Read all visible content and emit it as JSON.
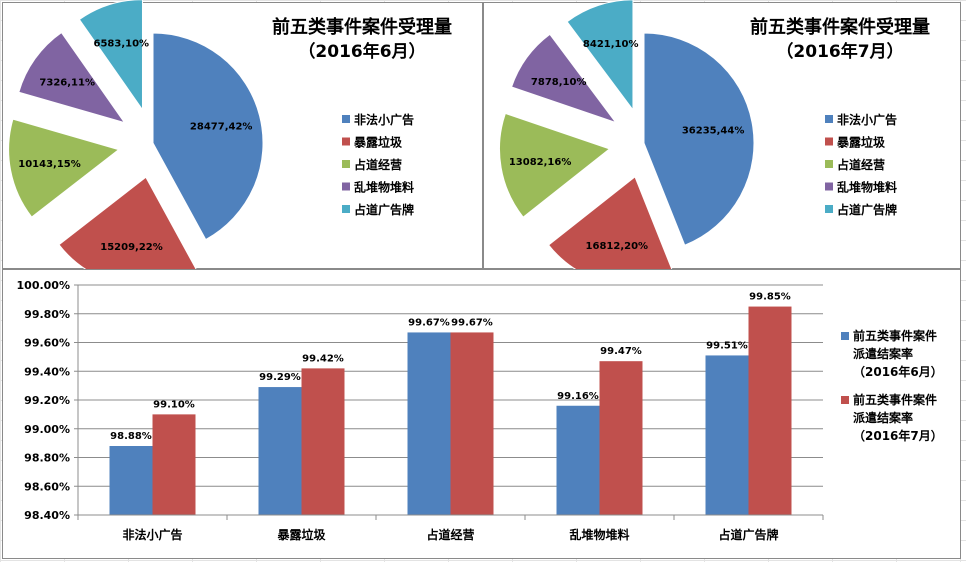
{
  "chart_data": [
    {
      "type": "pie",
      "title_line1": "前五类事件案件受理量",
      "title_line2": "（2016年6月）",
      "categories": [
        "非法小广告",
        "暴露垃圾",
        "占道经营",
        "乱堆物堆料",
        "占道广告牌"
      ],
      "values": [
        28477,
        15209,
        10143,
        7326,
        6583
      ],
      "labels": [
        "28477,42%",
        "15209,22%",
        "10143,15%",
        "7326,11%",
        "6583,10%"
      ],
      "colors": [
        "#4f81bd",
        "#c0504d",
        "#9bbb59",
        "#8064a2",
        "#4bacc6"
      ],
      "legend_position": "right"
    },
    {
      "type": "pie",
      "title_line1": "前五类事件案件受理量",
      "title_line2": "（2016年7月）",
      "categories": [
        "非法小广告",
        "暴露垃圾",
        "占道经营",
        "乱堆物堆料",
        "占道广告牌"
      ],
      "values": [
        36235,
        16812,
        13082,
        7878,
        8421
      ],
      "labels": [
        "36235,44%",
        "16812,20%",
        "13082,16%",
        "7878,10%",
        "8421,10%"
      ],
      "colors": [
        "#4f81bd",
        "#c0504d",
        "#9bbb59",
        "#8064a2",
        "#4bacc6"
      ],
      "legend_position": "right"
    },
    {
      "type": "bar",
      "categories": [
        "非法小广告",
        "暴露垃圾",
        "占道经营",
        "乱堆物堆料",
        "占道广告牌"
      ],
      "series": [
        {
          "name_lines": [
            "前五类事件案件",
            "派遣结案率",
            "（2016年6月）"
          ],
          "values": [
            98.88,
            99.29,
            99.67,
            99.16,
            99.51
          ],
          "labels": [
            "98.88%",
            "99.29%",
            "99.67%",
            "99.16%",
            "99.51%"
          ],
          "color": "#4f81bd"
        },
        {
          "name_lines": [
            "前五类事件案件",
            "派遣结案率",
            "（2016年7月）"
          ],
          "values": [
            99.1,
            99.42,
            99.67,
            99.47,
            99.85
          ],
          "labels": [
            "99.10%",
            "99.42%",
            "99.67%",
            "99.47%",
            "99.85%"
          ],
          "color": "#c0504d"
        }
      ],
      "ylim": [
        98.4,
        100.0
      ],
      "y_ticks": [
        98.4,
        98.6,
        98.8,
        99.0,
        99.2,
        99.4,
        99.6,
        99.8,
        100.0
      ],
      "y_tick_labels": [
        "98.40%",
        "98.60%",
        "98.80%",
        "99.00%",
        "99.20%",
        "99.40%",
        "99.60%",
        "99.80%",
        "100.00%"
      ],
      "grid": true,
      "legend_position": "right"
    }
  ]
}
